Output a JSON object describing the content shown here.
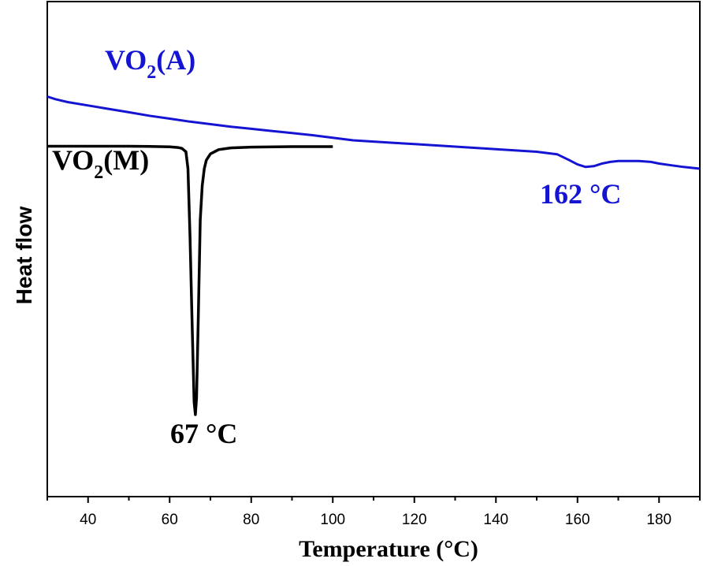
{
  "chart_data": {
    "type": "line",
    "xlabel": "Temperature (°C)",
    "ylabel": "Heat flow",
    "xlim": [
      30,
      190
    ],
    "xticks": [
      40,
      60,
      80,
      100,
      120,
      140,
      160,
      180
    ],
    "y_ticks_shown": false,
    "grid": false,
    "series": [
      {
        "name_main": "VO",
        "name_sub": "2",
        "name_suffix": "(A)",
        "color": "#1414d2",
        "x": [
          30,
          32,
          35,
          40,
          45,
          50,
          55,
          60,
          65,
          70,
          75,
          80,
          85,
          90,
          95,
          100,
          105,
          110,
          115,
          120,
          125,
          130,
          135,
          140,
          145,
          150,
          155,
          158,
          160,
          162,
          164,
          166,
          168,
          170,
          172,
          175,
          178,
          180,
          183,
          186,
          190
        ],
        "y": [
          0.85,
          0.82,
          0.785,
          0.745,
          0.705,
          0.665,
          0.625,
          0.59,
          0.555,
          0.525,
          0.495,
          0.47,
          0.445,
          0.42,
          0.395,
          0.365,
          0.335,
          0.32,
          0.305,
          0.29,
          0.275,
          0.26,
          0.245,
          0.23,
          0.215,
          0.2,
          0.17,
          0.1,
          0.05,
          0.02,
          0.03,
          0.06,
          0.08,
          0.09,
          0.09,
          0.09,
          0.08,
          0.06,
          0.04,
          0.02,
          0.0
        ]
      },
      {
        "name_main": "VO",
        "name_sub": "2",
        "name_suffix": "(M)",
        "color": "#000000",
        "x": [
          30,
          40,
          50,
          55,
          60,
          62,
          63,
          64,
          64.5,
          65,
          65.5,
          66,
          66.3,
          66.6,
          67,
          67.5,
          68,
          68.5,
          69,
          70,
          72,
          75,
          80,
          90,
          100
        ],
        "y": [
          0.265,
          0.265,
          0.265,
          0.262,
          0.258,
          0.25,
          0.24,
          0.2,
          0.0,
          -0.8,
          -1.8,
          -2.75,
          -2.9,
          -2.7,
          -1.8,
          -0.6,
          -0.2,
          0.0,
          0.1,
          0.175,
          0.225,
          0.245,
          0.255,
          0.26,
          0.26
        ]
      }
    ],
    "annotations": [
      {
        "text": "162 °C",
        "color": "#1414d2"
      },
      {
        "text": "67 °C",
        "color": "#000000"
      }
    ]
  }
}
